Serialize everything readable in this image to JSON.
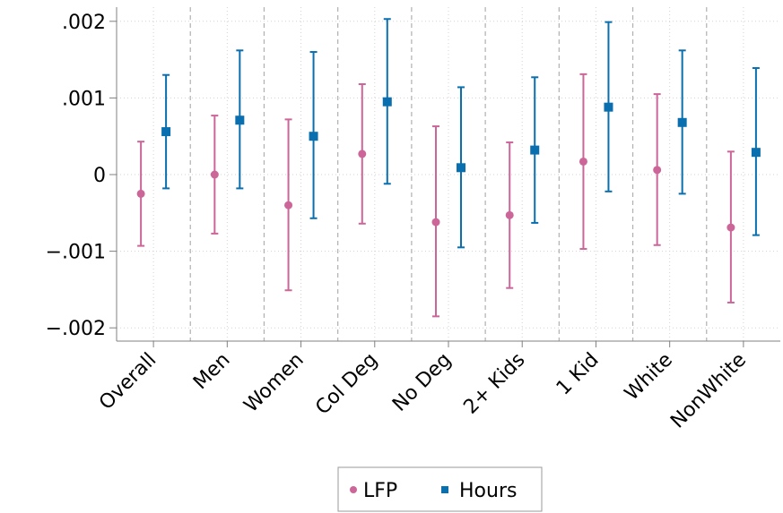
{
  "chart_data": {
    "type": "scatter",
    "categories": [
      "Overall",
      "Men",
      "Women",
      "Col Deg",
      "No Deg",
      "2+ Kids",
      "1 Kid",
      "White",
      "NonWhite"
    ],
    "ylim": [
      -0.0021,
      0.0021
    ],
    "yticks": [
      0.002,
      0.001,
      0,
      -0.001,
      -0.002
    ],
    "yticklabels": [
      ".002",
      ".001",
      "0",
      "−.001",
      "−.002"
    ],
    "grid": true,
    "legend_position": "bottom",
    "series": [
      {
        "name": "LFP",
        "color": "#cc6699",
        "marker": "circle",
        "values": [
          -0.00025,
          0.0,
          -0.0004,
          0.00027,
          -0.00062,
          -0.00053,
          0.00017,
          6e-05,
          -0.00069
        ],
        "ci_low": [
          -0.00093,
          -0.00077,
          -0.00151,
          -0.00064,
          -0.00185,
          -0.00148,
          -0.00097,
          -0.00092,
          -0.00167
        ],
        "ci_high": [
          0.00043,
          0.00077,
          0.00072,
          0.00118,
          0.00063,
          0.00042,
          0.00131,
          0.00105,
          0.0003
        ]
      },
      {
        "name": "Hours",
        "color": "#0a6fae",
        "marker": "square",
        "values": [
          0.00056,
          0.00071,
          0.0005,
          0.00095,
          9e-05,
          0.00032,
          0.00088,
          0.00068,
          0.00029
        ],
        "ci_low": [
          -0.00018,
          -0.00018,
          -0.00057,
          -0.00012,
          -0.00095,
          -0.00063,
          -0.00022,
          -0.00025,
          -0.00079
        ],
        "ci_high": [
          0.0013,
          0.00162,
          0.0016,
          0.00203,
          0.00114,
          0.00127,
          0.00199,
          0.00162,
          0.00139
        ]
      }
    ]
  }
}
